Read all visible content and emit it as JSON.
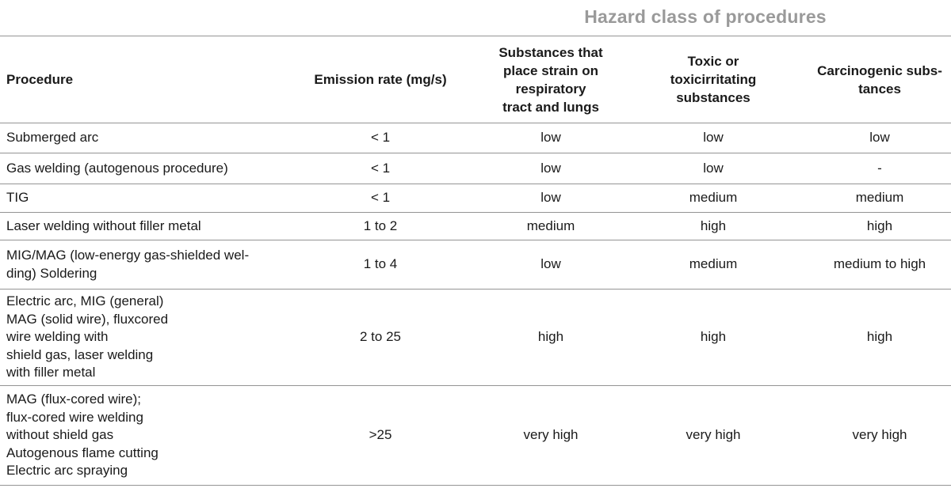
{
  "title": "Hazard class of procedures",
  "colors": {
    "title_gray": "#9a9a9a",
    "rule_gray": "#949494",
    "text": "#1a1a1a"
  },
  "table": {
    "columns": [
      {
        "key": "procedure",
        "label": "Procedure"
      },
      {
        "key": "emission_rate",
        "label": "Emission rate (mg/s)"
      },
      {
        "key": "respiratory",
        "label": "Substances that\nplace strain on\nrespiratory\ntract and lungs"
      },
      {
        "key": "toxic",
        "label": "Toxic or\ntoxicirritating\nsubstances"
      },
      {
        "key": "carcinogenic",
        "label": "Carcinogenic subs-\ntances"
      }
    ],
    "rows": [
      {
        "procedure": "Submerged arc",
        "emission_rate": "< 1",
        "respiratory": "low",
        "toxic": "low",
        "carcinogenic": "low"
      },
      {
        "procedure": "Gas welding (autogenous procedure)",
        "emission_rate": "< 1",
        "respiratory": "low",
        "toxic": "low",
        "carcinogenic": "-"
      },
      {
        "procedure": "TIG",
        "emission_rate": "< 1",
        "respiratory": "low",
        "toxic": "medium",
        "carcinogenic": "medium"
      },
      {
        "procedure": "Laser welding without filler metal",
        "emission_rate": "1 to 2",
        "respiratory": "medium",
        "toxic": "high",
        "carcinogenic": "high"
      },
      {
        "procedure": "MIG/MAG (low-energy gas-shielded wel-\nding) Soldering",
        "emission_rate": "1 to 4",
        "respiratory": "low",
        "toxic": "medium",
        "carcinogenic": "medium to high"
      },
      {
        "procedure": "Electric arc, MIG (general)\nMAG (solid wire), fluxcored\nwire welding with\nshield gas, laser welding\nwith filler metal",
        "emission_rate": "2 to 25",
        "respiratory": "high",
        "toxic": "high",
        "carcinogenic": "high"
      },
      {
        "procedure": "MAG (flux-cored wire);\nflux-cored wire welding\nwithout shield gas\nAutogenous flame cutting\nElectric arc spraying",
        "emission_rate": ">25",
        "respiratory": "very high",
        "toxic": "very high",
        "carcinogenic": "very high"
      }
    ]
  }
}
